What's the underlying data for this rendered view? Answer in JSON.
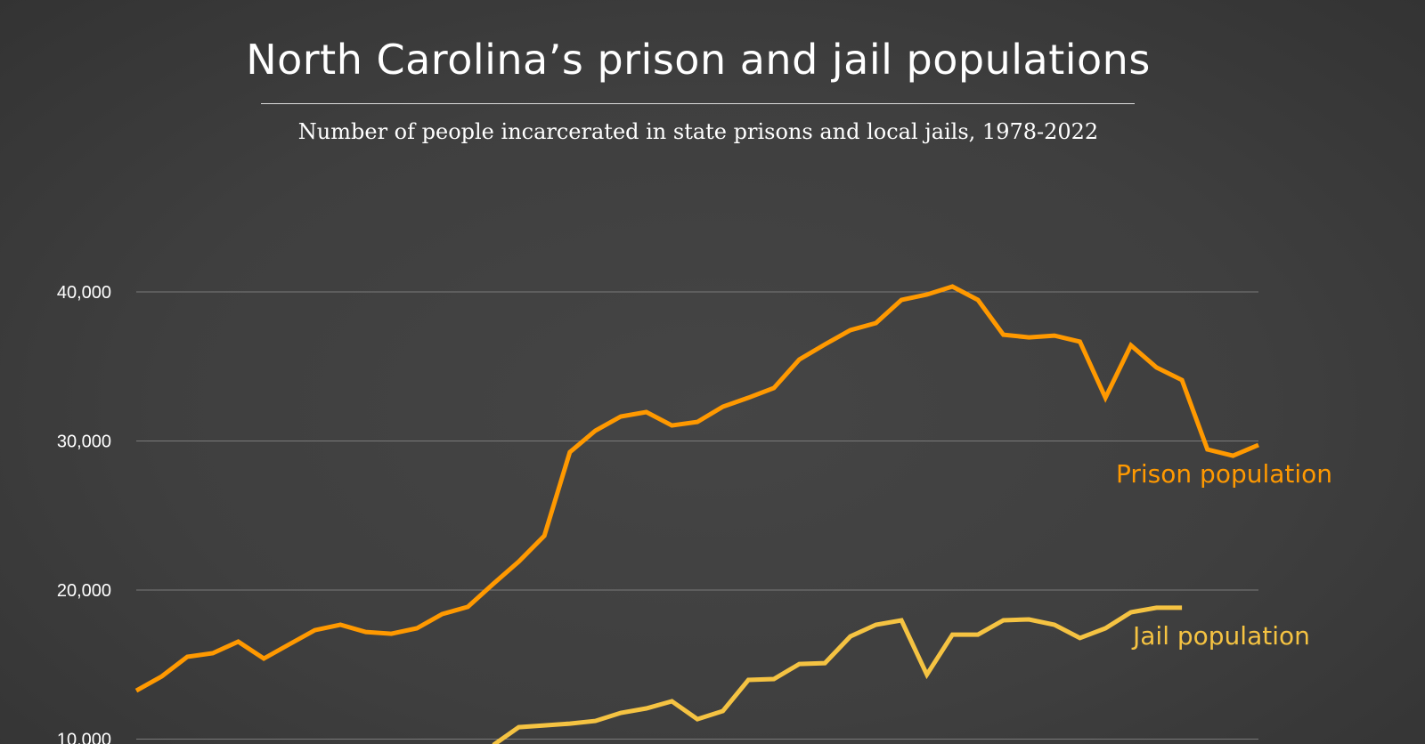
{
  "chart_data": {
    "type": "line",
    "title": "North Carolina’s prison and jail populations",
    "subtitle": "Number of people incarcerated in state prisons and local jails, 1978-2022",
    "xlabel": "",
    "ylabel": "",
    "xlim": [
      1978,
      2022
    ],
    "y_ticks": [
      10000,
      20000,
      30000,
      40000
    ],
    "y_tick_labels": [
      "10,000",
      "20,000",
      "30,000",
      "40,000"
    ],
    "grid": "horizontal",
    "legend": "direct labels at right",
    "series": [
      {
        "name": "Prison population",
        "color": "#ff9900",
        "x": [
          1978,
          1979,
          1980,
          1981,
          1982,
          1983,
          1984,
          1985,
          1986,
          1987,
          1988,
          1989,
          1990,
          1991,
          1992,
          1993,
          1994,
          1995,
          1996,
          1997,
          1998,
          1999,
          2000,
          2001,
          2002,
          2003,
          2004,
          2005,
          2006,
          2007,
          2008,
          2009,
          2010,
          2011,
          2012,
          2013,
          2014,
          2015,
          2016,
          2017,
          2018,
          2019,
          2020,
          2021,
          2022
        ],
        "values": [
          13250,
          14210,
          15520,
          15760,
          16540,
          15400,
          16360,
          17310,
          17670,
          17190,
          17070,
          17430,
          18390,
          18870,
          20420,
          21910,
          23640,
          29250,
          30690,
          31640,
          31940,
          31040,
          31280,
          32300,
          32900,
          33550,
          35460,
          36480,
          37430,
          37910,
          39460,
          39820,
          40360,
          39460,
          37130,
          36950,
          37070,
          36660,
          32900,
          36420,
          34930,
          34090,
          29430,
          29010,
          29730
        ]
      },
      {
        "name": "Jail population",
        "color": "#f5c342",
        "x": [
          1992,
          1993,
          1994,
          1995,
          1996,
          1997,
          1998,
          1999,
          2000,
          2001,
          2002,
          2003,
          2004,
          2005,
          2006,
          2007,
          2008,
          2009,
          2010,
          2011,
          2012,
          2013,
          2014,
          2015,
          2016,
          2017,
          2018,
          2019
        ],
        "values": [
          9600,
          10800,
          10920,
          11040,
          11220,
          11760,
          12060,
          12540,
          11340,
          11880,
          13970,
          14030,
          15040,
          15100,
          16890,
          17670,
          17970,
          14330,
          17010,
          17010,
          17970,
          18030,
          17670,
          16780,
          17430,
          18510,
          18810,
          18810
        ]
      }
    ]
  }
}
